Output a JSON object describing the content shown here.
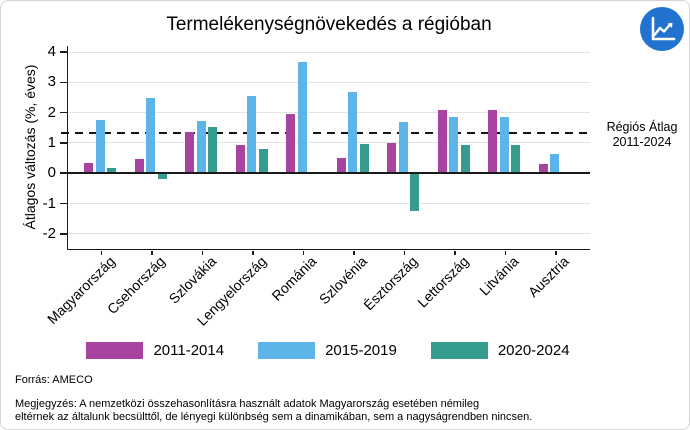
{
  "title": "Termelékenységnövekedés a régióban",
  "chart_data": {
    "type": "bar",
    "title": "Termelékenységnövekedés a régióban",
    "xlabel": "",
    "ylabel": "Átlagos változás (%, éves)",
    "ylim": [
      -2.5,
      4.2
    ],
    "y_ticks": [
      4,
      3,
      2,
      1,
      0,
      -1,
      -2
    ],
    "grid": true,
    "legend_position": "bottom",
    "categories": [
      "Magyarország",
      "Csehország",
      "Szlovákia",
      "Lengyelország",
      "Románia",
      "Szlovénia",
      "Észtország",
      "Lettország",
      "Litvánia",
      "Ausztria"
    ],
    "series": [
      {
        "name": "2011-2014",
        "color": "#a8449f",
        "values": [
          0.35,
          0.46,
          1.35,
          0.94,
          1.97,
          0.49,
          1.01,
          2.08,
          2.08,
          0.3
        ]
      },
      {
        "name": "2015-2019",
        "color": "#5cb4e8",
        "values": [
          1.77,
          2.5,
          1.72,
          2.55,
          3.68,
          2.69,
          1.7,
          1.86,
          1.87,
          0.64
        ]
      },
      {
        "name": "2020-2024",
        "color": "#369c8d",
        "values": [
          0.18,
          -0.18,
          1.52,
          0.79,
          0.04,
          0.95,
          -1.25,
          0.94,
          0.93,
          0.05
        ]
      }
    ],
    "reference_line": {
      "value": 1.33,
      "style": "dashed",
      "label_line1": "Régiós Átlag",
      "label_line2": "2011-2024"
    }
  },
  "icon": {
    "name": "line-chart-logo",
    "background": "#2173cf",
    "foreground": "#ffffff"
  },
  "footer": {
    "source": "Forrás: AMECO",
    "note_lines": [
      "Megjegyzés: A nemzetközi összehasonlításra használt adatok Magyarország esetében némileg",
      "eltérnek az általunk becsülttől, de lényegi különbség sem a dinamikában, sem a nagyságrendben nincsen."
    ]
  }
}
